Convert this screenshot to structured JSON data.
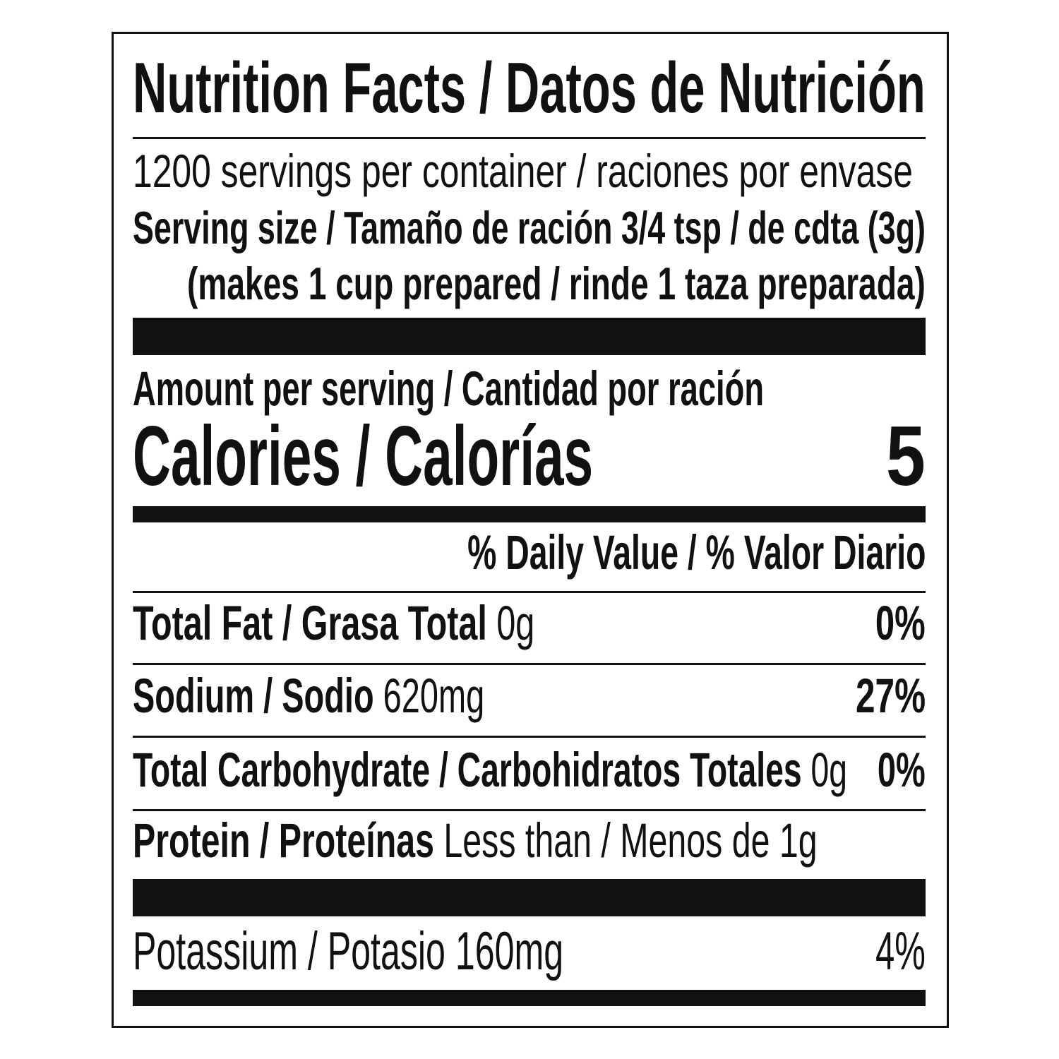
{
  "label": {
    "title": "Nutrition Facts / Datos de Nutrición",
    "servings": "1200 servings per container / raciones por envase",
    "serving_size": "Serving size / Tamaño de ración  3/4 tsp / de cdta (3g)",
    "prepared": "(makes 1 cup prepared / rinde 1 taza preparada)",
    "amount_per_serving": "Amount per serving / Cantidad por ración",
    "calories_label": "Calories / Calorías",
    "calories_value": "5",
    "daily_value_header": "% Daily Value / % Valor Diario",
    "nutrients": [
      {
        "name": "Total Fat / Grasa Total",
        "amount": "0g",
        "dv": "0%"
      },
      {
        "name": "Sodium / Sodio",
        "amount": "620mg",
        "dv": "27%"
      },
      {
        "name": "Total Carbohydrate / Carbohidratos Totales",
        "amount": "0g",
        "dv": "0%"
      },
      {
        "name": "Protein / Proteínas",
        "amount": "Less than / Menos de 1g",
        "dv": ""
      },
      {
        "name": "Potassium / Potasio",
        "amount": "160mg",
        "dv": "4%"
      }
    ]
  },
  "colors": {
    "ink": "#111111",
    "background": "#ffffff"
  }
}
